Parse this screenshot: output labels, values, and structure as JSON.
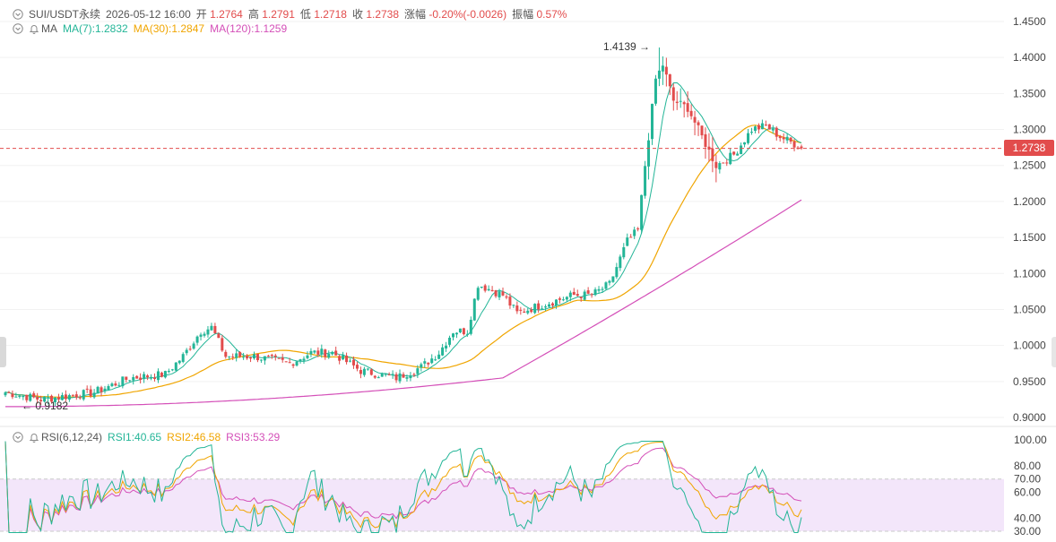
{
  "header": {
    "symbol": "SUI/USDT永续",
    "datetime": "2026-05-12 16:00",
    "open_label": "开",
    "open": "1.2764",
    "high_label": "高",
    "high": "1.2791",
    "low_label": "低",
    "low": "1.2718",
    "close_label": "收",
    "close": "1.2738",
    "change_label": "涨幅",
    "change": "-0.20%(-0.0026)",
    "amp_label": "振幅",
    "amp": "0.57%"
  },
  "ma_legend": {
    "name": "MA",
    "ma7": "MA(7):1.2832",
    "ma30": "MA(30):1.2847",
    "ma120": "MA(120):1.1259"
  },
  "rsi_legend": {
    "name": "RSI(6,12,24)",
    "rsi1": "RSI1:40.65",
    "rsi2": "RSI2:46.58",
    "rsi3": "RSI3:53.29"
  },
  "current_price": "1.2738",
  "colors": {
    "up": "#23b597",
    "down": "#e24c4c",
    "ma7": "#23b597",
    "ma30": "#f0a500",
    "ma120": "#d44fb8",
    "rsi_band": "#f3e6fa"
  },
  "icons": [
    "chevron-down-icon",
    "bell-icon",
    "arrow-right-icon",
    "arrow-left-icon"
  ],
  "chart_data": [
    {
      "type": "candlestick",
      "ylim": [
        0.88,
        1.47
      ],
      "y_ticks": [
        "1.4500",
        "1.4000",
        "1.3500",
        "1.3000",
        "1.2500",
        "1.2000",
        "1.1500",
        "1.1000",
        "1.0500",
        "1.0000",
        "0.9500",
        "0.9000"
      ],
      "annotations": {
        "max_label": "1.4139",
        "min_label": "0.9182"
      },
      "series": [
        {
          "name": "MA(7)",
          "value": 1.2832
        },
        {
          "name": "MA(30)",
          "value": 1.2847
        },
        {
          "name": "MA(120)",
          "value": 1.1259
        }
      ],
      "anchors": [
        [
          0,
          0.935
        ],
        [
          10,
          0.925
        ],
        [
          25,
          0.935
        ],
        [
          35,
          0.955
        ],
        [
          45,
          0.96
        ],
        [
          50,
          0.985
        ],
        [
          55,
          1.02
        ],
        [
          58,
          1.025
        ],
        [
          62,
          0.985
        ],
        [
          70,
          0.985
        ],
        [
          80,
          0.975
        ],
        [
          86,
          0.99
        ],
        [
          92,
          0.99
        ],
        [
          100,
          0.965
        ],
        [
          110,
          0.955
        ],
        [
          117,
          0.97
        ],
        [
          122,
          0.99
        ],
        [
          126,
          1.02
        ],
        [
          130,
          1.02
        ],
        [
          133,
          1.085
        ],
        [
          140,
          1.07
        ],
        [
          144,
          1.045
        ],
        [
          150,
          1.055
        ],
        [
          160,
          1.07
        ],
        [
          165,
          1.07
        ],
        [
          170,
          1.085
        ],
        [
          175,
          1.145
        ],
        [
          178,
          1.16
        ],
        [
          180,
          1.25
        ],
        [
          183,
          1.37
        ],
        [
          185,
          1.39
        ],
        [
          188,
          1.34
        ],
        [
          192,
          1.33
        ],
        [
          196,
          1.29
        ],
        [
          200,
          1.25
        ],
        [
          205,
          1.265
        ],
        [
          210,
          1.3
        ],
        [
          214,
          1.305
        ],
        [
          218,
          1.29
        ],
        [
          222,
          1.28
        ],
        [
          224,
          1.274
        ]
      ]
    },
    {
      "type": "line",
      "ylim": [
        28,
        102
      ],
      "y_ticks": [
        "100.00",
        "80.00",
        "70.00",
        "60.00",
        "40.00",
        "30.00"
      ],
      "band": [
        30,
        70
      ],
      "series": [
        {
          "name": "RSI1",
          "value": 40.65
        },
        {
          "name": "RSI2",
          "value": 46.58
        },
        {
          "name": "RSI3",
          "value": 53.29
        }
      ]
    }
  ]
}
